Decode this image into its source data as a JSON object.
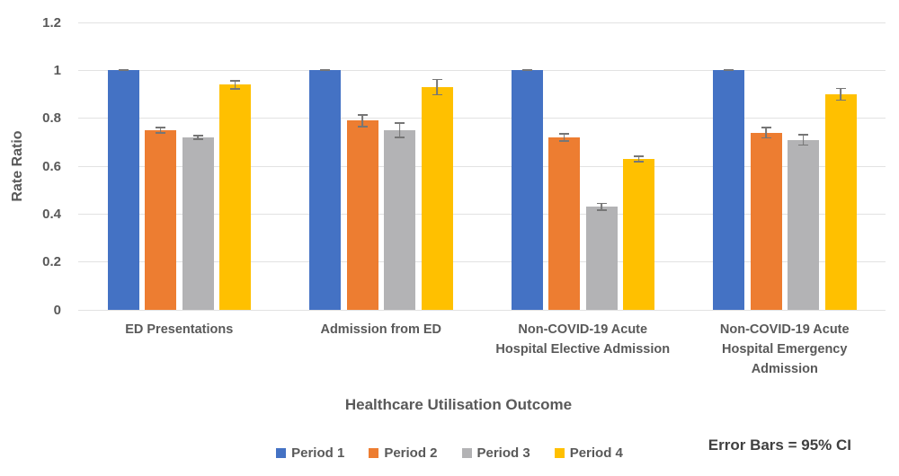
{
  "chart_data": {
    "type": "bar",
    "title": "",
    "xlabel": "Healthcare Utilisation Outcome",
    "ylabel": "Rate Ratio",
    "ylim": [
      0,
      1.2
    ],
    "yticks": [
      0,
      0.2,
      0.4,
      0.6,
      0.8,
      1,
      1.2
    ],
    "ytick_labels": [
      "0",
      "0.2",
      "0.4",
      "0.6",
      "0.8",
      "1",
      "1.2"
    ],
    "grid": true,
    "legend_position": "bottom",
    "categories": [
      "ED Presentations",
      "Admission from ED",
      "Non-COVID-19 Acute\nHospital Elective Admission",
      "Non-COVID-19 Acute\nHospital Emergency\nAdmission"
    ],
    "series": [
      {
        "name": "Period 1",
        "color": "#4472C4",
        "values": [
          1.0,
          1.0,
          1.0,
          1.0
        ],
        "ci95": [
          0.003,
          0.003,
          0.003,
          0.003
        ]
      },
      {
        "name": "Period 2",
        "color": "#ED7D31",
        "values": [
          0.75,
          0.79,
          0.72,
          0.74
        ],
        "ci95": [
          0.015,
          0.028,
          0.018,
          0.025
        ]
      },
      {
        "name": "Period 3",
        "color": "#B3B3B5",
        "values": [
          0.72,
          0.75,
          0.43,
          0.71
        ],
        "ci95": [
          0.012,
          0.032,
          0.018,
          0.025
        ]
      },
      {
        "name": "Period 4",
        "color": "#FFC000",
        "values": [
          0.94,
          0.93,
          0.63,
          0.9
        ],
        "ci95": [
          0.02,
          0.035,
          0.015,
          0.028
        ]
      }
    ],
    "annotation": "Error Bars = 95% CI",
    "error_bar_color": "#767676",
    "gridline_color": "#e2e2e2",
    "text_color": "#595959"
  }
}
